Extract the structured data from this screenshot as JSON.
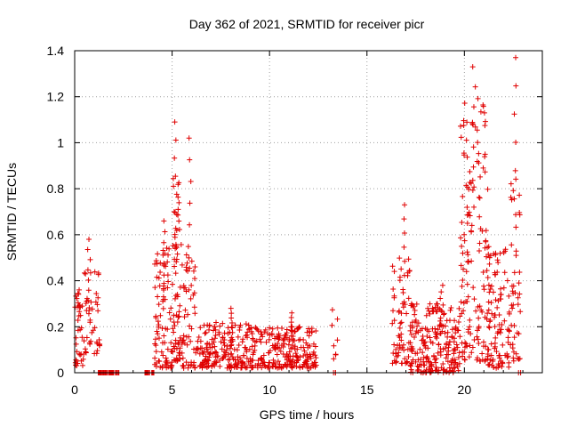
{
  "chart_data": {
    "type": "scatter",
    "title": "Day 362 of 2021, SRMTID for receiver picr",
    "xlabel": "GPS time / hours",
    "ylabel": "SRMTID / TECUs",
    "xlim": [
      0,
      24
    ],
    "ylim": [
      0,
      1.4
    ],
    "xticks": [
      0,
      5,
      10,
      15,
      20
    ],
    "yticks": [
      0,
      0.2,
      0.4,
      0.6,
      0.8,
      1,
      1.2,
      1.4
    ],
    "ytick_labels": [
      "0",
      "0.2",
      "0.4",
      "0.6",
      "0.8",
      "1",
      "1.2",
      "1.4"
    ],
    "grid": true,
    "marker": "+",
    "color": "#e00000",
    "clusters": [
      {
        "x0": 0.0,
        "x1": 0.5,
        "n": 30,
        "ymin": 0.03,
        "ymax": 0.38,
        "peak": 0.36
      },
      {
        "x0": 0.5,
        "x1": 1.3,
        "n": 40,
        "ymin": 0.08,
        "ymax": 0.45,
        "peak": 0.58
      },
      {
        "x0": 1.2,
        "x1": 2.3,
        "n": 45,
        "ymin": 0.0,
        "ymax": 0.0
      },
      {
        "x0": 3.6,
        "x1": 4.1,
        "n": 20,
        "ymin": 0.0,
        "ymax": 0.0
      },
      {
        "x0": 4.1,
        "x1": 5.0,
        "n": 80,
        "ymin": 0.02,
        "ymax": 0.55,
        "peak": 0.66
      },
      {
        "x0": 5.0,
        "x1": 5.4,
        "n": 60,
        "ymin": 0.05,
        "ymax": 0.9,
        "peak": 1.09
      },
      {
        "x0": 5.4,
        "x1": 6.2,
        "n": 60,
        "ymin": 0.02,
        "ymax": 0.6,
        "peak": 1.02
      },
      {
        "x0": 6.2,
        "x1": 9.0,
        "n": 180,
        "ymin": 0.02,
        "ymax": 0.22,
        "peak": 0.28
      },
      {
        "x0": 9.0,
        "x1": 12.4,
        "n": 230,
        "ymin": 0.02,
        "ymax": 0.2,
        "peak": 0.26
      },
      {
        "x0": 13.2,
        "x1": 13.5,
        "n": 8,
        "ymin": 0.05,
        "ymax": 0.3
      },
      {
        "x0": 13.2,
        "x1": 13.4,
        "n": 3,
        "ymin": 0.0,
        "ymax": 0.0
      },
      {
        "x0": 16.3,
        "x1": 17.2,
        "n": 60,
        "ymin": 0.04,
        "ymax": 0.5,
        "peak": 0.73
      },
      {
        "x0": 17.2,
        "x1": 19.8,
        "n": 220,
        "ymin": 0.0,
        "ymax": 0.3,
        "peak": 0.38
      },
      {
        "x0": 19.8,
        "x1": 21.2,
        "n": 140,
        "ymin": 0.05,
        "ymax": 1.2,
        "peak": 1.33
      },
      {
        "x0": 21.2,
        "x1": 22.3,
        "n": 100,
        "ymin": 0.02,
        "ymax": 0.55
      },
      {
        "x0": 22.3,
        "x1": 22.9,
        "n": 45,
        "ymin": 0.05,
        "ymax": 0.85,
        "peak": 1.37
      },
      {
        "x0": 22.7,
        "x1": 22.9,
        "n": 2,
        "ymin": 0.0,
        "ymax": 0.0
      }
    ]
  }
}
